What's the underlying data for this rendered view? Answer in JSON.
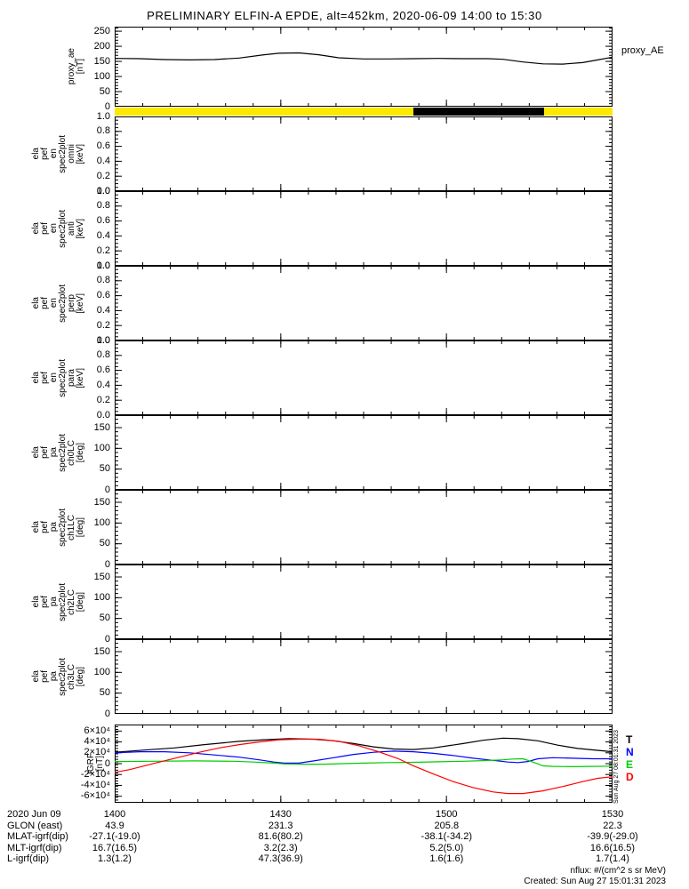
{
  "title": "PRELIMINARY ELFIN-A EPDE, alt=452km, 2020-06-09 14:00 to 15:30",
  "right_side": {
    "proxy_label": "proxy_AE",
    "created_vertical": "Sun Aug 27 08:01:31 2023",
    "legend": [
      {
        "label": "T",
        "color": "#000000"
      },
      {
        "label": "N",
        "color": "#0000ff"
      },
      {
        "label": "E",
        "color": "#00cc00"
      },
      {
        "label": "D",
        "color": "#ff0000"
      }
    ]
  },
  "footer": {
    "nflux_note": "nflux: #/(cm^2 s sr MeV)",
    "created": "Created: Sun Aug 27 15:01:31 2023"
  },
  "bottom_table": {
    "row_labels": [
      "2020 Jun 09",
      "GLON (east)",
      "MLAT-igrf(dip)",
      "MLT-igrf(dip)",
      "L-igrf(dip)"
    ],
    "row_keys": [
      "time",
      "glon",
      "mlat",
      "mlt",
      "l"
    ],
    "columns": [
      {
        "time": "1400",
        "glon": "43.9",
        "mlat": "-27.1(-19.0)",
        "mlt": "16.7(16.5)",
        "l": "1.3(1.2)"
      },
      {
        "time": "1430",
        "glon": "231.3",
        "mlat": "81.6(80.2)",
        "mlt": "3.2(2.3)",
        "l": "47.3(36.9)"
      },
      {
        "time": "1500",
        "glon": "205.8",
        "mlat": "-38.1(-34.2)",
        "mlt": "5.2(5.0)",
        "l": "1.6(1.6)"
      },
      {
        "time": "1530",
        "glon": "22.3",
        "mlat": "-39.9(-29.0)",
        "mlt": "16.6(16.5)",
        "l": "1.7(1.4)"
      }
    ]
  },
  "chart_data": {
    "type": "line",
    "subtype": "multi-panel-time-series",
    "title": "PRELIMINARY ELFIN-A EPDE, alt=452km, 2020-06-09 14:00 to 15:30",
    "x_axis": {
      "start": "2020-06-09 14:00",
      "end": "2020-06-09 15:30",
      "major_tick_labels": [
        "1400",
        "1430",
        "1500",
        "1530"
      ],
      "major_fracs": [
        0,
        0.33333,
        0.66667,
        1
      ],
      "minor_divisions": 18
    },
    "panels": [
      {
        "id": "proxy_ae",
        "kind": "line",
        "label_lines": [
          "proxy_ae",
          "[nT]"
        ],
        "ylim": [
          0,
          265
        ],
        "y_minor_step": 10,
        "y_major_ticks": [
          {
            "v": 0,
            "label": "0"
          },
          {
            "v": 50,
            "label": "50"
          },
          {
            "v": 100,
            "label": "100"
          },
          {
            "v": 150,
            "label": "150"
          },
          {
            "v": 200,
            "label": "200"
          },
          {
            "v": 250,
            "label": "250"
          }
        ],
        "series": [
          {
            "name": "proxy_AE",
            "color": "#000000",
            "points": [
              [
                0,
                160
              ],
              [
                0.05,
                159
              ],
              [
                0.1,
                156
              ],
              [
                0.15,
                155
              ],
              [
                0.2,
                156
              ],
              [
                0.25,
                161
              ],
              [
                0.3,
                172
              ],
              [
                0.33,
                177
              ],
              [
                0.37,
                178
              ],
              [
                0.41,
                172
              ],
              [
                0.45,
                162
              ],
              [
                0.5,
                158
              ],
              [
                0.55,
                158
              ],
              [
                0.6,
                159
              ],
              [
                0.65,
                160
              ],
              [
                0.7,
                159
              ],
              [
                0.75,
                159
              ],
              [
                0.78,
                157
              ],
              [
                0.82,
                148
              ],
              [
                0.86,
                142
              ],
              [
                0.9,
                141
              ],
              [
                0.94,
                146
              ],
              [
                0.97,
                155
              ],
              [
                1,
                164
              ]
            ]
          }
        ]
      },
      {
        "id": "fast_bar",
        "kind": "strip",
        "segments": [
          {
            "from": 0,
            "to": 0.6,
            "color": "#ffe800"
          },
          {
            "from": 0.6,
            "to": 0.8625,
            "color": "#000000"
          },
          {
            "from": 0.8625,
            "to": 1,
            "color": "#ffe800"
          }
        ]
      },
      {
        "id": "en_spec_omni",
        "kind": "empty",
        "label_lines": [
          "ela",
          "pef",
          "en",
          "spec2plot",
          "omni",
          "[keV]"
        ],
        "ylim": [
          0,
          1
        ],
        "y_minor_step": 0.05,
        "y_major_ticks": [
          {
            "v": 0,
            "label": "0.0"
          },
          {
            "v": 0.2,
            "label": "0.2"
          },
          {
            "v": 0.4,
            "label": "0.4"
          },
          {
            "v": 0.6,
            "label": "0.6"
          },
          {
            "v": 0.8,
            "label": "0.8"
          },
          {
            "v": 1,
            "label": "1.0"
          }
        ],
        "series": []
      },
      {
        "id": "en_spec_anti",
        "kind": "empty",
        "label_lines": [
          "ela",
          "pef",
          "en",
          "spec2plot",
          "anti",
          "[keV]"
        ],
        "ylim": [
          0,
          1
        ],
        "y_minor_step": 0.05,
        "y_major_ticks": [
          {
            "v": 0,
            "label": "0.0"
          },
          {
            "v": 0.2,
            "label": "0.2"
          },
          {
            "v": 0.4,
            "label": "0.4"
          },
          {
            "v": 0.6,
            "label": "0.6"
          },
          {
            "v": 0.8,
            "label": "0.8"
          },
          {
            "v": 1,
            "label": "1.0"
          }
        ],
        "series": []
      },
      {
        "id": "en_spec_perp",
        "kind": "empty",
        "label_lines": [
          "ela",
          "pef",
          "en",
          "spec2plot",
          "perp",
          "[keV]"
        ],
        "ylim": [
          0,
          1
        ],
        "y_minor_step": 0.05,
        "y_major_ticks": [
          {
            "v": 0,
            "label": "0.0"
          },
          {
            "v": 0.2,
            "label": "0.2"
          },
          {
            "v": 0.4,
            "label": "0.4"
          },
          {
            "v": 0.6,
            "label": "0.6"
          },
          {
            "v": 0.8,
            "label": "0.8"
          },
          {
            "v": 1,
            "label": "1.0"
          }
        ],
        "series": []
      },
      {
        "id": "en_spec_para",
        "kind": "empty",
        "label_lines": [
          "ela",
          "pef",
          "en",
          "spec2plot",
          "para",
          "[keV]"
        ],
        "ylim": [
          0,
          1
        ],
        "y_minor_step": 0.05,
        "y_major_ticks": [
          {
            "v": 0,
            "label": "0.0"
          },
          {
            "v": 0.2,
            "label": "0.2"
          },
          {
            "v": 0.4,
            "label": "0.4"
          },
          {
            "v": 0.6,
            "label": "0.6"
          },
          {
            "v": 0.8,
            "label": "0.8"
          },
          {
            "v": 1,
            "label": "1.0"
          }
        ],
        "series": []
      },
      {
        "id": "pa_spec_ch0LC",
        "kind": "empty",
        "label_lines": [
          "ela",
          "pef",
          "pa",
          "spec2plot",
          "ch0LC",
          "[deg]"
        ],
        "ylim": [
          0,
          180
        ],
        "y_minor_step": 10,
        "y_major_ticks": [
          {
            "v": 0,
            "label": "0"
          },
          {
            "v": 50,
            "label": "50"
          },
          {
            "v": 100,
            "label": "100"
          },
          {
            "v": 150,
            "label": "150"
          }
        ],
        "series": []
      },
      {
        "id": "pa_spec_ch1LC",
        "kind": "empty",
        "label_lines": [
          "ela",
          "pef",
          "pa",
          "spec2plot",
          "ch1LC",
          "[deg]"
        ],
        "ylim": [
          0,
          180
        ],
        "y_minor_step": 10,
        "y_major_ticks": [
          {
            "v": 0,
            "label": "0"
          },
          {
            "v": 50,
            "label": "50"
          },
          {
            "v": 100,
            "label": "100"
          },
          {
            "v": 150,
            "label": "150"
          }
        ],
        "series": []
      },
      {
        "id": "pa_spec_ch2LC",
        "kind": "empty",
        "label_lines": [
          "ela",
          "pef",
          "pa",
          "spec2plot",
          "ch2LC",
          "[deg]"
        ],
        "ylim": [
          0,
          180
        ],
        "y_minor_step": 10,
        "y_major_ticks": [
          {
            "v": 0,
            "label": "0"
          },
          {
            "v": 50,
            "label": "50"
          },
          {
            "v": 100,
            "label": "100"
          },
          {
            "v": 150,
            "label": "150"
          }
        ],
        "series": []
      },
      {
        "id": "pa_spec_ch3LC",
        "kind": "empty",
        "label_lines": [
          "ela",
          "pef",
          "pa",
          "spec2plot",
          "ch3LC",
          "[deg]"
        ],
        "ylim": [
          0,
          180
        ],
        "y_minor_step": 10,
        "y_major_ticks": [
          {
            "v": 0,
            "label": "0"
          },
          {
            "v": 50,
            "label": "50"
          },
          {
            "v": 100,
            "label": "100"
          },
          {
            "v": 150,
            "label": "150"
          }
        ],
        "series": []
      },
      {
        "id": "igrf",
        "kind": "line",
        "label_lines": [
          "IGRF",
          "[nT]"
        ],
        "ylim": [
          -72000,
          72000
        ],
        "y_minor_step": 5000,
        "y_major_ticks": [
          {
            "v": 60000,
            "label": "6×10⁴"
          },
          {
            "v": 40000,
            "label": "4×10⁴"
          },
          {
            "v": 20000,
            "label": "2×10⁴"
          },
          {
            "v": 0,
            "label": "0"
          },
          {
            "v": -20000,
            "label": "-2×10⁴"
          },
          {
            "v": -40000,
            "label": "-4×10⁴"
          },
          {
            "v": -60000,
            "label": "-6×10⁴"
          }
        ],
        "series": [
          {
            "name": "T",
            "color": "#000000",
            "points": [
              [
                0,
                21000
              ],
              [
                0.06,
                25000
              ],
              [
                0.12,
                29000
              ],
              [
                0.18,
                35000
              ],
              [
                0.25,
                41000
              ],
              [
                0.3,
                44000
              ],
              [
                0.35,
                46000
              ],
              [
                0.4,
                45000
              ],
              [
                0.44,
                42000
              ],
              [
                0.48,
                37000
              ],
              [
                0.52,
                31000
              ],
              [
                0.56,
                27000
              ],
              [
                0.6,
                26000
              ],
              [
                0.64,
                29000
              ],
              [
                0.7,
                37000
              ],
              [
                0.74,
                43000
              ],
              [
                0.78,
                47000
              ],
              [
                0.81,
                46000
              ],
              [
                0.85,
                42000
              ],
              [
                0.89,
                34000
              ],
              [
                0.93,
                28000
              ],
              [
                1,
                22000
              ]
            ]
          },
          {
            "name": "N",
            "color": "#0000ff",
            "points": [
              [
                0,
                20000
              ],
              [
                0.05,
                22000
              ],
              [
                0.1,
                22000
              ],
              [
                0.15,
                20000
              ],
              [
                0.2,
                16000
              ],
              [
                0.25,
                12000
              ],
              [
                0.29,
                7000
              ],
              [
                0.32,
                3000
              ],
              [
                0.34,
                1000
              ],
              [
                0.37,
                1000
              ],
              [
                0.4,
                5000
              ],
              [
                0.44,
                11000
              ],
              [
                0.48,
                17000
              ],
              [
                0.52,
                21000
              ],
              [
                0.56,
                23000
              ],
              [
                0.6,
                22000
              ],
              [
                0.64,
                19000
              ],
              [
                0.68,
                15000
              ],
              [
                0.72,
                10000
              ],
              [
                0.76,
                6000
              ],
              [
                0.79,
                3000
              ],
              [
                0.81,
                2000
              ],
              [
                0.83,
                4000
              ],
              [
                0.85,
                9000
              ],
              [
                0.88,
                11000
              ],
              [
                0.92,
                10000
              ],
              [
                0.96,
                9000
              ],
              [
                1,
                9000
              ]
            ]
          },
          {
            "name": "E",
            "color": "#00cc00",
            "points": [
              [
                0,
                4000
              ],
              [
                0.08,
                4500
              ],
              [
                0.16,
                5000
              ],
              [
                0.24,
                4500
              ],
              [
                0.28,
                3000
              ],
              [
                0.32,
                1000
              ],
              [
                0.34,
                -500
              ],
              [
                0.38,
                -1000
              ],
              [
                0.42,
                -1000
              ],
              [
                0.5,
                1000
              ],
              [
                0.55,
                2000
              ],
              [
                0.6,
                2500
              ],
              [
                0.65,
                3500
              ],
              [
                0.7,
                4500
              ],
              [
                0.74,
                5500
              ],
              [
                0.78,
                7000
              ],
              [
                0.8,
                8500
              ],
              [
                0.82,
                9000
              ],
              [
                0.84,
                3000
              ],
              [
                0.86,
                -4000
              ],
              [
                0.88,
                -5000
              ],
              [
                0.92,
                -5500
              ],
              [
                0.96,
                -5000
              ],
              [
                1,
                -4500
              ]
            ]
          },
          {
            "name": "D",
            "color": "#ff0000",
            "points": [
              [
                0,
                -16000
              ],
              [
                0.03,
                -11000
              ],
              [
                0.06,
                -4000
              ],
              [
                0.09,
                3000
              ],
              [
                0.13,
                12000
              ],
              [
                0.17,
                21000
              ],
              [
                0.21,
                29000
              ],
              [
                0.25,
                35000
              ],
              [
                0.29,
                40000
              ],
              [
                0.33,
                44000
              ],
              [
                0.37,
                45000
              ],
              [
                0.41,
                45000
              ],
              [
                0.45,
                41000
              ],
              [
                0.49,
                33000
              ],
              [
                0.53,
                22000
              ],
              [
                0.57,
                9000
              ],
              [
                0.6,
                -4000
              ],
              [
                0.64,
                -19000
              ],
              [
                0.68,
                -33000
              ],
              [
                0.72,
                -44000
              ],
              [
                0.76,
                -52000
              ],
              [
                0.79,
                -55000
              ],
              [
                0.82,
                -55000
              ],
              [
                0.86,
                -50000
              ],
              [
                0.9,
                -42000
              ],
              [
                0.94,
                -33000
              ],
              [
                0.97,
                -27000
              ],
              [
                1,
                -24000
              ]
            ]
          }
        ]
      }
    ]
  }
}
